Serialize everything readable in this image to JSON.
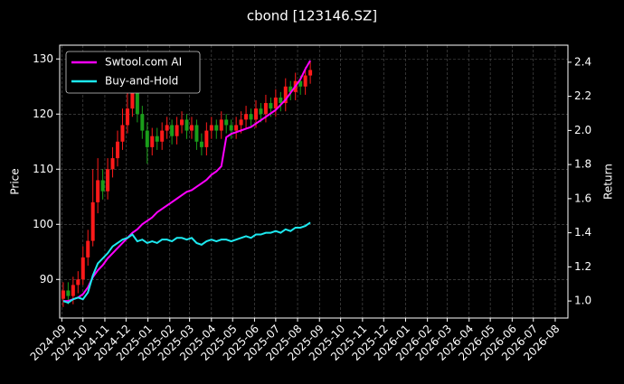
{
  "chart_data": {
    "type": "candlestick",
    "title": "cbond [123146.SZ]",
    "ylabel": "Price",
    "y2label": "Return",
    "x": [
      2,
      9,
      16,
      23,
      30,
      37,
      44,
      51,
      58,
      65,
      72,
      79,
      86,
      93,
      100,
      107,
      114,
      121,
      128,
      135,
      142,
      149,
      156,
      163,
      170,
      177,
      184,
      191,
      198,
      205,
      212,
      219,
      226,
      233,
      240,
      247,
      254,
      261,
      268,
      275,
      282,
      289,
      296,
      303,
      310,
      317,
      324,
      331,
      338,
      345,
      352
    ],
    "open": [
      86.5,
      88,
      87,
      89,
      90,
      94,
      97,
      104,
      108,
      106,
      110,
      112,
      115,
      118,
      121,
      124,
      120,
      117,
      114,
      116,
      115,
      117,
      118,
      116,
      118,
      119,
      117,
      118,
      115,
      114,
      117,
      118,
      117,
      119,
      118,
      117,
      118,
      119,
      120,
      119,
      121,
      120,
      122,
      121,
      123,
      122,
      125,
      124,
      126,
      125,
      127
    ],
    "high": [
      89.5,
      89.5,
      90.5,
      91.5,
      96,
      99,
      110,
      112,
      110,
      112,
      114,
      117,
      121,
      124,
      127,
      125.5,
      121.5,
      118.5,
      117.5,
      117.5,
      118.5,
      119.5,
      119,
      119.5,
      120.5,
      120,
      119.5,
      119,
      116.5,
      118.5,
      119.5,
      119,
      120.5,
      120,
      119,
      119.5,
      120.5,
      121.5,
      121,
      122.5,
      122,
      123.5,
      123,
      124.5,
      124,
      126.5,
      126,
      127.5,
      127,
      128.5,
      129.5
    ],
    "low": [
      85,
      85.5,
      85.5,
      87.5,
      89,
      92.5,
      96,
      102,
      104.5,
      104.5,
      108.5,
      110.5,
      113.5,
      116.5,
      119.5,
      118.5,
      115.5,
      111,
      112.5,
      113.5,
      113.5,
      115.5,
      114.5,
      114.5,
      116.5,
      115.5,
      115.5,
      113.5,
      112.5,
      112.5,
      115.5,
      115.5,
      115.5,
      116.5,
      115.5,
      115.5,
      116.5,
      117.5,
      117.5,
      117.5,
      118.5,
      118.5,
      119.5,
      119.5,
      120.5,
      120.5,
      122.5,
      122.5,
      123.5,
      123.5,
      125.5
    ],
    "close": [
      88,
      87,
      89,
      90,
      94,
      97,
      104,
      108,
      106,
      110,
      112,
      115,
      118,
      121,
      124,
      120,
      117,
      114,
      116,
      115,
      117,
      118,
      116,
      118,
      119,
      117,
      118,
      115,
      114,
      117,
      118,
      117,
      119,
      118,
      117,
      118,
      119,
      120,
      119,
      121,
      120,
      122,
      121,
      123,
      122,
      125,
      124,
      126,
      125,
      127,
      128
    ],
    "up_color": "#ff1a1a",
    "down_color": "#1a9e1a",
    "series": [
      {
        "name": "Swtool.com AI",
        "color": "#ff00ff",
        "axis": "y2",
        "values": [
          1.0,
          1.0,
          1.01,
          1.02,
          1.04,
          1.08,
          1.14,
          1.18,
          1.21,
          1.25,
          1.28,
          1.31,
          1.34,
          1.37,
          1.4,
          1.42,
          1.45,
          1.47,
          1.49,
          1.52,
          1.54,
          1.56,
          1.58,
          1.6,
          1.62,
          1.64,
          1.65,
          1.67,
          1.69,
          1.71,
          1.74,
          1.76,
          1.79,
          1.96,
          1.98,
          1.99,
          2.0,
          2.01,
          2.02,
          2.04,
          2.06,
          2.08,
          2.1,
          2.12,
          2.15,
          2.18,
          2.22,
          2.26,
          2.3,
          2.36,
          2.41
        ]
      },
      {
        "name": "Buy-and-Hold",
        "color": "#1de9f0",
        "axis": "y2",
        "values": [
          1.0,
          0.99,
          1.01,
          1.02,
          1.01,
          1.05,
          1.15,
          1.22,
          1.25,
          1.28,
          1.32,
          1.34,
          1.36,
          1.37,
          1.39,
          1.35,
          1.36,
          1.34,
          1.35,
          1.34,
          1.36,
          1.36,
          1.35,
          1.37,
          1.37,
          1.36,
          1.37,
          1.34,
          1.33,
          1.35,
          1.36,
          1.35,
          1.36,
          1.36,
          1.35,
          1.36,
          1.37,
          1.38,
          1.37,
          1.39,
          1.39,
          1.4,
          1.4,
          1.41,
          1.4,
          1.42,
          1.41,
          1.43,
          1.43,
          1.44,
          1.46
        ]
      }
    ],
    "xlim": [
      -3,
      717
    ],
    "xticks": [
      {
        "value": 0,
        "label": "2024-09"
      },
      {
        "value": 30,
        "label": "2024-10"
      },
      {
        "value": 61,
        "label": "2024-11"
      },
      {
        "value": 91,
        "label": "2024-12"
      },
      {
        "value": 122,
        "label": "2025-01"
      },
      {
        "value": 153,
        "label": "2025-02"
      },
      {
        "value": 181,
        "label": "2025-03"
      },
      {
        "value": 212,
        "label": "2025-04"
      },
      {
        "value": 242,
        "label": "2025-05"
      },
      {
        "value": 273,
        "label": "2025-06"
      },
      {
        "value": 303,
        "label": "2025-07"
      },
      {
        "value": 334,
        "label": "2025-08"
      },
      {
        "value": 365,
        "label": "2025-09"
      },
      {
        "value": 395,
        "label": "2025-10"
      },
      {
        "value": 426,
        "label": "2025-11"
      },
      {
        "value": 456,
        "label": "2025-12"
      },
      {
        "value": 487,
        "label": "2026-01"
      },
      {
        "value": 518,
        "label": "2026-02"
      },
      {
        "value": 546,
        "label": "2026-03"
      },
      {
        "value": 577,
        "label": "2026-04"
      },
      {
        "value": 607,
        "label": "2026-05"
      },
      {
        "value": 638,
        "label": "2026-06"
      },
      {
        "value": 668,
        "label": "2026-07"
      },
      {
        "value": 699,
        "label": "2026-08"
      }
    ],
    "ylim": [
      83,
      132.5
    ],
    "yticks": [
      90,
      100,
      110,
      120,
      130
    ],
    "y2lim": [
      0.9,
      2.5
    ],
    "y2ticks": [
      {
        "value": 1,
        "label": "1.0"
      },
      1.2,
      1.4,
      1.6,
      1.8,
      {
        "value": 2,
        "label": "2.0"
      },
      2.2,
      2.4
    ],
    "grid": true,
    "legend": "upper-left"
  }
}
